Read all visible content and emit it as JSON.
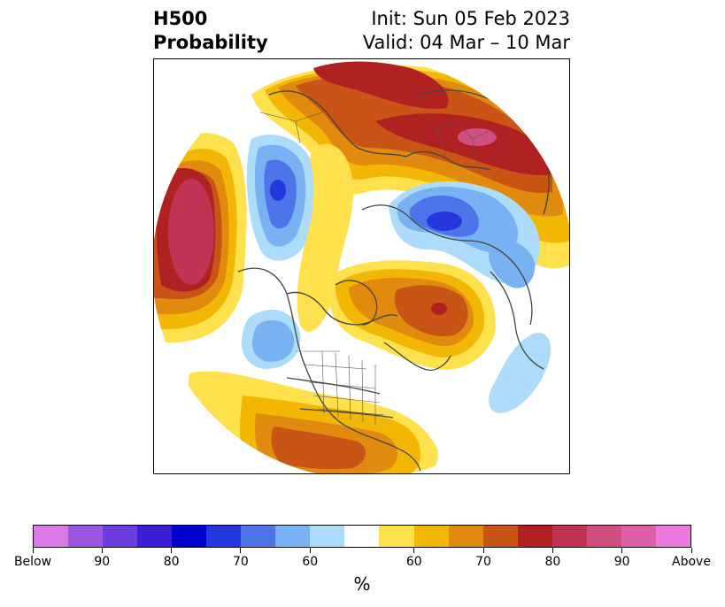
{
  "header": {
    "variable": "H500",
    "product": "Probability",
    "init": "Init: Sun 05 Feb 2023",
    "valid": "Valid: 04 Mar – 10 Mar"
  },
  "map": {
    "projection": "north polar stereographic",
    "region": "Northern Hemisphere",
    "basemap": "coastlines, country and state borders"
  },
  "colorbar": {
    "units": "%",
    "colors": [
      "#d97ae6",
      "#9a58e0",
      "#6b3ddc",
      "#3a1fd6",
      "#0000cc",
      "#2438dd",
      "#4d74e8",
      "#79b2f2",
      "#addcfa",
      "#ffffff",
      "#ffe04d",
      "#f2b705",
      "#e08a0e",
      "#c85515",
      "#b02222",
      "#c03353",
      "#cf4f80",
      "#dd5fa8",
      "#ea79e0"
    ],
    "ticks": [
      "Below",
      "90",
      "80",
      "70",
      "60",
      "60",
      "70",
      "80",
      "90",
      "Above"
    ]
  }
}
